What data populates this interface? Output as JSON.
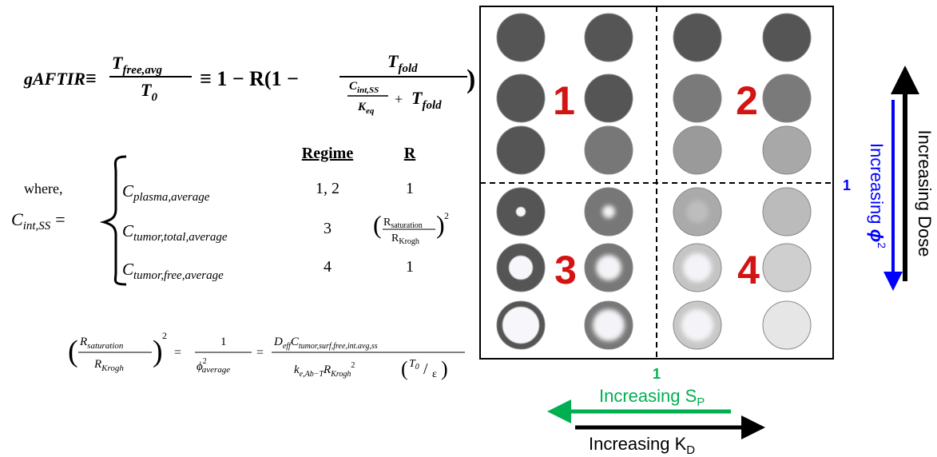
{
  "formula": {
    "lhs": "gAFTIR",
    "equiv": "≡",
    "T": "T",
    "free_avg": "free,avg",
    "zero": "0",
    "middle": "≡ 1 − R(1 −",
    "fold": "fold",
    "C": "C",
    "int_ss": "int,SS",
    "K": "K",
    "eq": "eq",
    "plus": "+",
    "close": ")"
  },
  "definition": {
    "where": "where,",
    "C": "C",
    "sub": "int,SS",
    "equals": "="
  },
  "table": {
    "headers": [
      "Regime",
      "R"
    ],
    "rows": [
      {
        "label": "C",
        "sub": "plasma,average",
        "regime": "1, 2",
        "r": "1"
      },
      {
        "label": "C",
        "sub": "tumor,total,average",
        "regime": "3",
        "r": {
          "num": "R",
          "num_sub": "saturation",
          "den": "R",
          "den_sub": "Krogh",
          "exp": "2"
        }
      },
      {
        "label": "C",
        "sub": "tumor,free,average",
        "regime": "4",
        "r": "1"
      }
    ]
  },
  "ratio": {
    "R": "R",
    "saturation": "saturation",
    "Krogh": "Krogh",
    "exp": "2",
    "equals": "=",
    "one": "1",
    "phi": "ϕ",
    "average": "average",
    "D": "D",
    "eff": "eff",
    "C": "C",
    "csub": "tumor,surf,free,int.avg,ss",
    "k": "k",
    "ksub": "e,Ab−T",
    "T": "T",
    "zero": "0",
    "slash": "/",
    "eps": "ε",
    "open": "(",
    "close": ")"
  },
  "quadrants": [
    "1",
    "2",
    "3",
    "4"
  ],
  "axes": {
    "threshold_x": "1",
    "threshold_y": "1",
    "sp": {
      "text": "Increasing S",
      "sub": "P"
    },
    "kd": {
      "text": "Increasing K",
      "sub": "D"
    },
    "phi": {
      "text": "Increasing ",
      "symbol": "ϕ",
      "exp": "2"
    },
    "dose": "Increasing Dose"
  }
}
